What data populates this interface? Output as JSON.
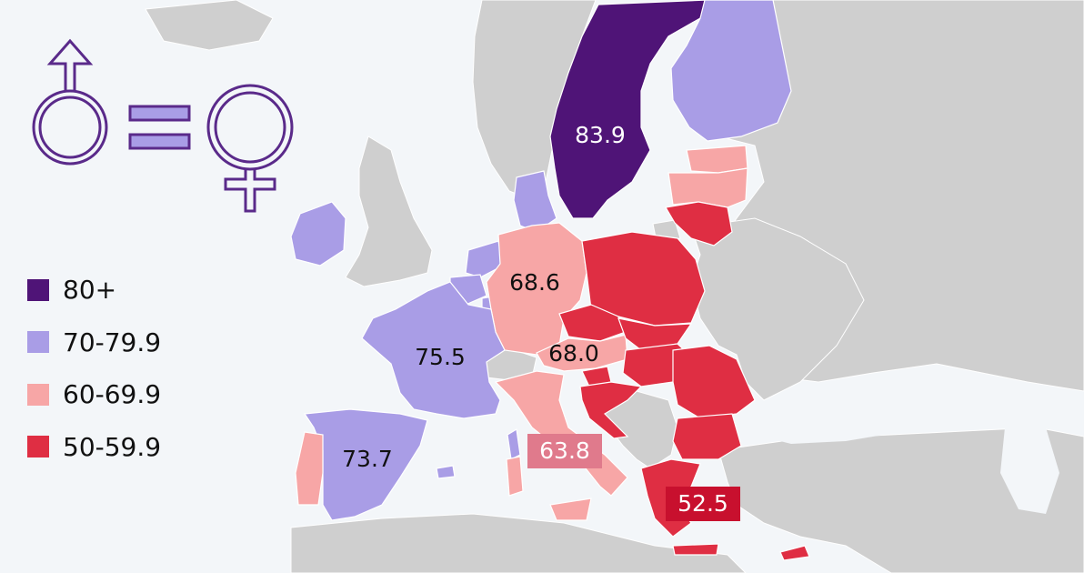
{
  "legend": {
    "items": [
      {
        "label": "80+",
        "color": "#4f1477"
      },
      {
        "label": "70-79.9",
        "color": "#a99de6"
      },
      {
        "label": "60-69.9",
        "color": "#f7a6a6"
      },
      {
        "label": "50-59.9",
        "color": "#df2e43"
      }
    ]
  },
  "map_labels": {
    "sweden": "83.9",
    "germany": "68.6",
    "austria": "68.0",
    "france": "75.5",
    "spain": "73.7",
    "italy": "63.8",
    "greece": "52.5"
  },
  "colors": {
    "background": "#f3f6f9",
    "non_eu_land": "#cfcfcf",
    "category_80_plus": "#4f1477",
    "category_70_79": "#a99de6",
    "category_60_69": "#f7a6a6",
    "category_50_59": "#df2e43",
    "italy_label_bg": "#e07a8c",
    "greece_label_bg": "#c8102e",
    "gender_symbols": "#5a2a8a",
    "equals_fill": "#a99de6"
  },
  "icons": {
    "gender_equality": [
      "male-symbol-icon",
      "equals-icon",
      "female-symbol-icon"
    ]
  }
}
